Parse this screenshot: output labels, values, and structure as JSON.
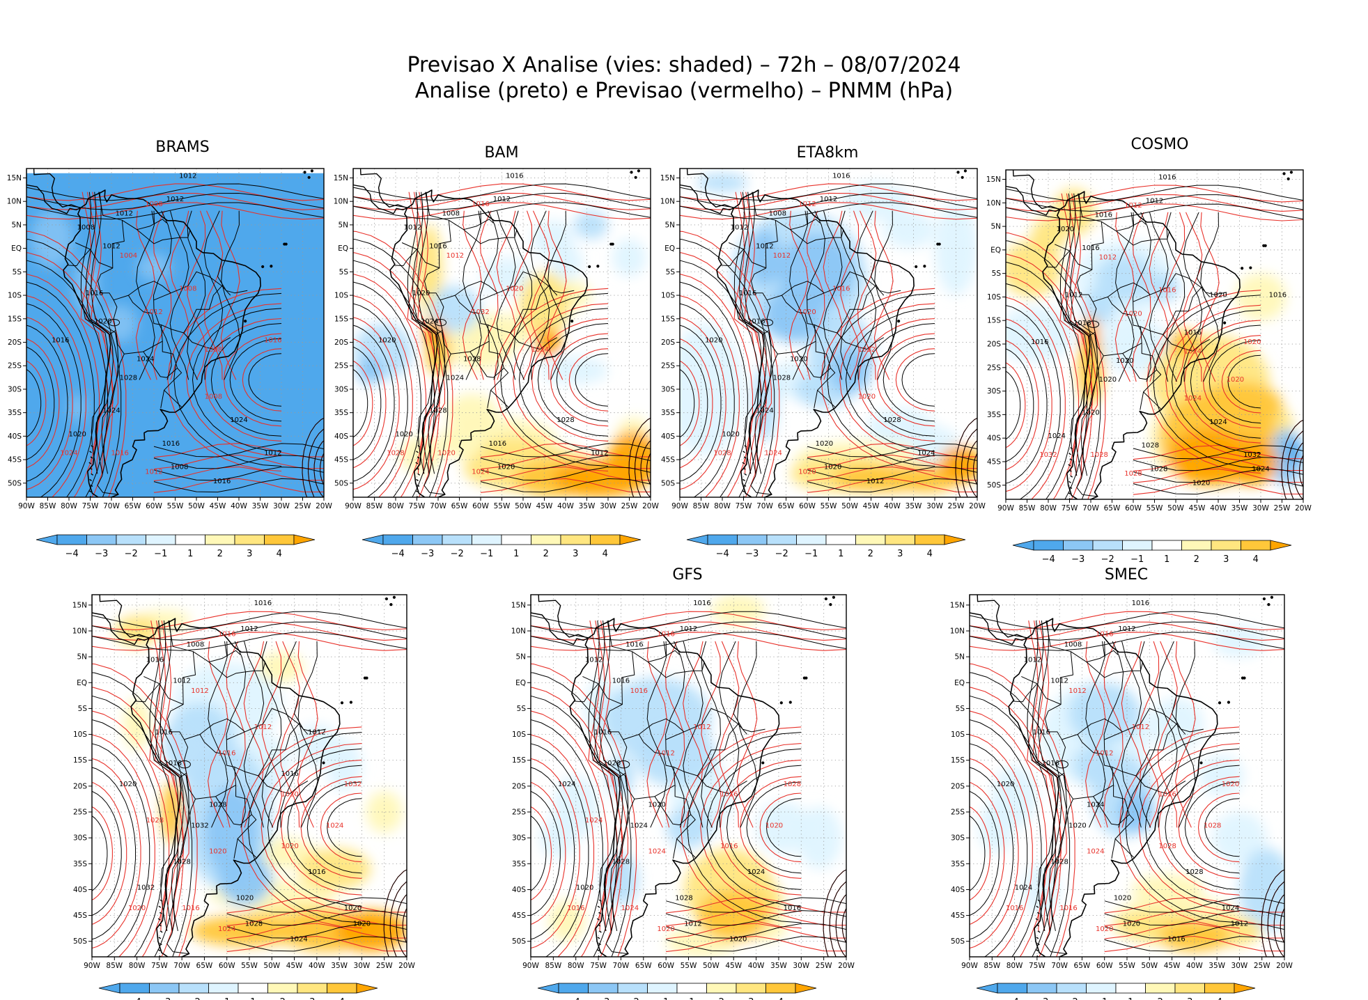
{
  "title": {
    "line1": "Previsao X Analise (vies: shaded) – 72h – 08/07/2024",
    "line2": "Analise (preto) e Previsao (vermelho) – PNMM (hPa)"
  },
  "colors": {
    "analysis_contour": "#000000",
    "forecast_contour": "#e8312a",
    "neg4": "#4fa8ec",
    "neg3": "#8cc7f5",
    "neg2": "#b8e0fb",
    "neg1": "#dff4ff",
    "pos1": "#fff8b8",
    "pos2": "#ffe680",
    "pos3": "#ffc73a",
    "pos4": "#ffa500",
    "land_outline": "#000000"
  },
  "axes": {
    "lat_ticks": [
      "15N",
      "10N",
      "5N",
      "EQ",
      "5S",
      "10S",
      "15S",
      "20S",
      "25S",
      "30S",
      "35S",
      "40S",
      "45S",
      "50S"
    ],
    "lon_ticks": [
      "90W",
      "85W",
      "80W",
      "75W",
      "70W",
      "65W",
      "60W",
      "55W",
      "50W",
      "45W",
      "40W",
      "35W",
      "30W",
      "25W",
      "20W"
    ],
    "lat_range": [
      -53,
      17
    ],
    "lon_range": [
      -90,
      -20
    ]
  },
  "colorbar": {
    "labels": [
      "−4",
      "−3",
      "−2",
      "−1",
      "1",
      "2",
      "3",
      "4"
    ]
  },
  "panels": [
    {
      "name": "BRAMS",
      "bias": "neg_strong",
      "analysis_labels": [
        "1012",
        "1012",
        "1012",
        "1008",
        "1012",
        "1016",
        "1020",
        "1016",
        "1024",
        "1028",
        "1024",
        "1020",
        "1016",
        "1024",
        "1012",
        "1008",
        "1016"
      ],
      "forecast_labels": [
        "1008",
        "1004",
        "1008",
        "1012",
        "1008",
        "1024",
        "1016",
        "1012",
        "1008",
        "1016"
      ]
    },
    {
      "name": "BAM",
      "bias": "mixed_pos_south",
      "analysis_labels": [
        "1016",
        "1012",
        "1008",
        "1012",
        "1016",
        "1020",
        "1024",
        "1020",
        "1028",
        "1024",
        "1028",
        "1020",
        "1016",
        "1028",
        "1012",
        "1020"
      ],
      "forecast_labels": [
        "1016",
        "1012",
        "1020",
        "1032",
        "1024",
        "1028",
        "1020",
        "1024"
      ]
    },
    {
      "name": "ETA8km",
      "bias": "neg_north_pos_south",
      "analysis_labels": [
        "1016",
        "1012",
        "1008",
        "1012",
        "1012",
        "1016",
        "1016",
        "1020",
        "1020",
        "1028",
        "1024",
        "1020",
        "1020",
        "1028",
        "1024",
        "1020",
        "1012"
      ],
      "forecast_labels": [
        "1012",
        "1012",
        "1016",
        "1020",
        "1032",
        "1028",
        "1024",
        "1020",
        "1020"
      ]
    },
    {
      "name": "COSMO",
      "bias": "pos_strong_south",
      "analysis_labels": [
        "1016",
        "1012",
        "1016",
        "1020",
        "1016",
        "1012",
        "1016",
        "1016",
        "1020",
        "1020",
        "1020",
        "1024",
        "1028",
        "1024",
        "1032",
        "1028",
        "1020",
        "1024",
        "1016",
        "1020",
        "1016"
      ],
      "forecast_labels": [
        "1012",
        "1012",
        "1016",
        "1020",
        "1024",
        "1032",
        "1028",
        "1028",
        "1024",
        "1020",
        "1020"
      ]
    },
    {
      "name": "",
      "bias": "neg_center_pos_south",
      "analysis_labels": [
        "1016",
        "1012",
        "1008",
        "1016",
        "1012",
        "1016",
        "1016",
        "1020",
        "1028",
        "1032",
        "1028",
        "1032",
        "1020",
        "1016",
        "1020",
        "1028",
        "1024",
        "1020",
        "1016",
        "1012"
      ],
      "forecast_labels": [
        "1016",
        "1012",
        "1012",
        "1016",
        "1020",
        "1020",
        "1016",
        "1024",
        "1020",
        "1032",
        "1024",
        "1020",
        "1028"
      ]
    },
    {
      "name": "GFS",
      "bias": "mixed_pos_south_light",
      "analysis_labels": [
        "1016",
        "1012",
        "1016",
        "1012",
        "1016",
        "1016",
        "1020",
        "1024",
        "1020",
        "1024",
        "1028",
        "1020",
        "1028",
        "1024",
        "1016",
        "1012",
        "1020"
      ],
      "forecast_labels": [
        "1016",
        "1016",
        "1012",
        "1012",
        "1016",
        "1016",
        "1024",
        "1020",
        "1016",
        "1028",
        "1020",
        "1024",
        "1024"
      ]
    },
    {
      "name": "SMEC",
      "bias": "neg_center_pos_south_light",
      "analysis_labels": [
        "1016",
        "1012",
        "1008",
        "1012",
        "1012",
        "1016",
        "1016",
        "1020",
        "1024",
        "1020",
        "1028",
        "1024",
        "1020",
        "1028",
        "1024",
        "1020",
        "1016",
        "1012"
      ],
      "forecast_labels": [
        "1016",
        "1012",
        "1012",
        "1012",
        "1016",
        "1016",
        "1016",
        "1020",
        "1028",
        "1020",
        "1028",
        "1024"
      ]
    }
  ]
}
